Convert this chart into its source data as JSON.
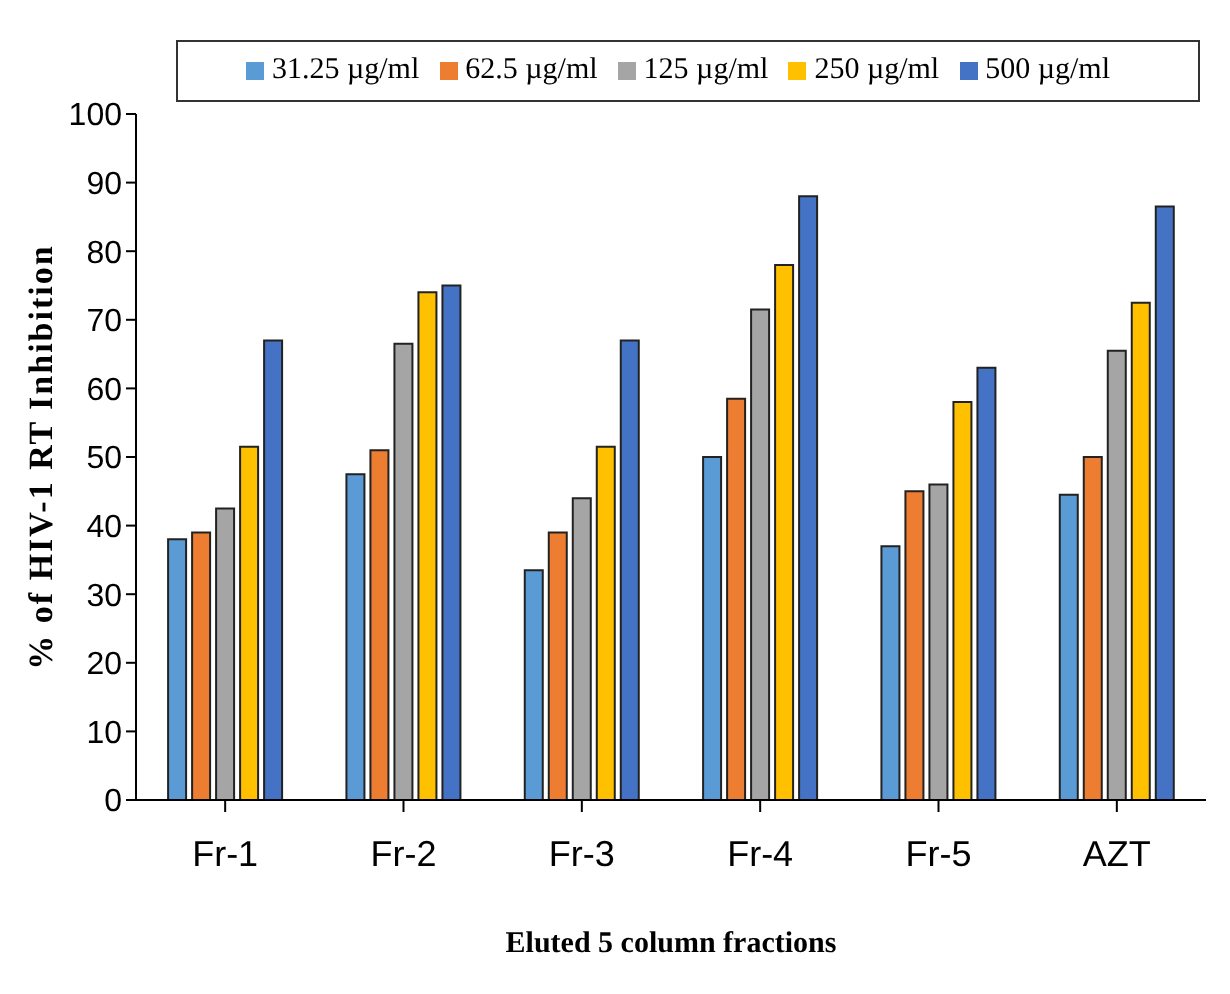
{
  "chart_data": {
    "type": "bar",
    "xlabel": "Eluted 5 column fractions",
    "ylabel": "% of HIV-1 RT Inhibition",
    "categories": [
      "Fr-1",
      "Fr-2",
      "Fr-3",
      "Fr-4",
      "Fr-5",
      "AZT"
    ],
    "series": [
      {
        "name": "31.25 µg/ml",
        "color": "#5b9bd5",
        "values": [
          38,
          47.5,
          33.5,
          50,
          37,
          44.5
        ]
      },
      {
        "name": "62.5 µg/ml",
        "color": "#ed7d31",
        "values": [
          39,
          51,
          39,
          58.5,
          45,
          50
        ]
      },
      {
        "name": "125 µg/ml",
        "color": "#a5a5a5",
        "values": [
          42.5,
          66.5,
          44,
          71.5,
          46,
          65.5
        ]
      },
      {
        "name": "250 µg/ml",
        "color": "#ffc000",
        "values": [
          51.5,
          74,
          51.5,
          78,
          58,
          72.5
        ]
      },
      {
        "name": "500 µg/ml",
        "color": "#4472c4",
        "values": [
          67,
          75,
          67,
          88,
          63,
          86.5
        ]
      }
    ],
    "ylim": [
      0,
      100
    ],
    "yticks": [
      0,
      10,
      20,
      30,
      40,
      50,
      60,
      70,
      80,
      90,
      100
    ],
    "grid": false,
    "legend": "top"
  }
}
